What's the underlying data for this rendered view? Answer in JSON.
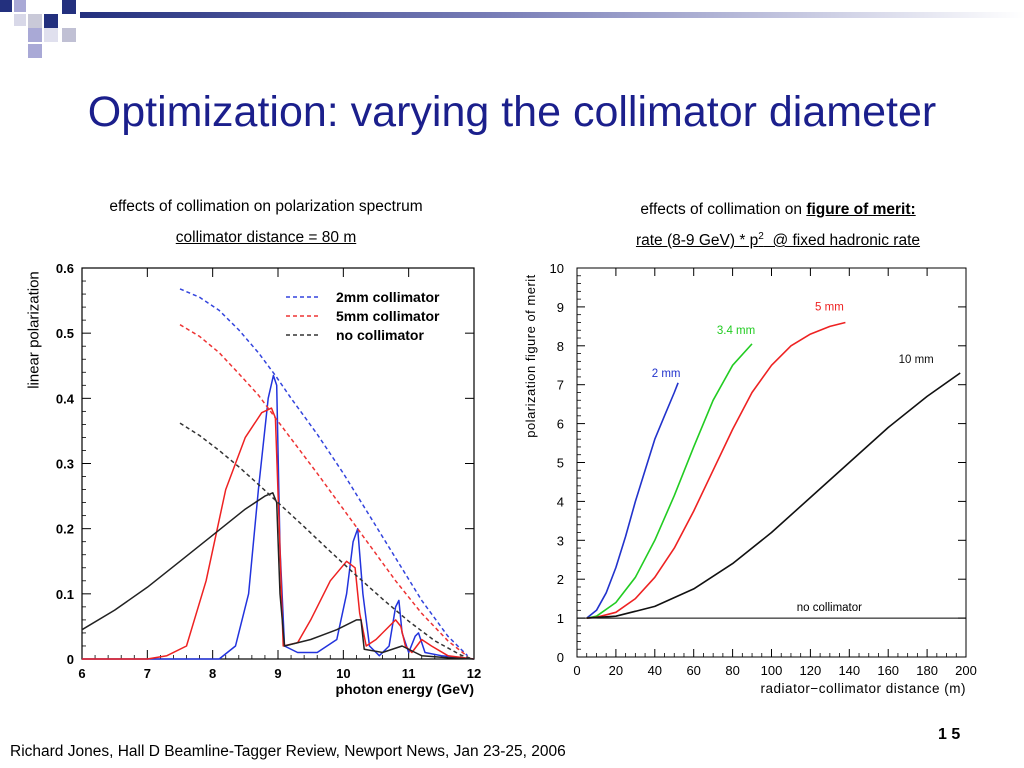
{
  "title": "Optimization: varying the collimator diameter",
  "left_caption": "effects of collimation on polarization spectrum",
  "left_subcaption": "collimator distance = 80 m",
  "right_caption_prefix": "effects of collimation on ",
  "right_caption_bold": "figure of merit:",
  "right_subcaption_a": "rate (8-9 GeV) * p",
  "right_subcaption_sup": "2",
  "right_subcaption_b": "  @ fixed hadronic rate",
  "footer": "Richard Jones, Hall D Beamline-Tagger Review, Newport News, Jan 23-25, 2006",
  "page_number": "1 5",
  "colors": {
    "title": "#1b1f8c",
    "decor_blue": "#23307e",
    "decor_light": "#a9a9d6",
    "decor_gray": "#b8b8c8"
  },
  "chart_data": [
    {
      "type": "line",
      "xlabel": "photon energy (GeV)",
      "ylabel": "linear polarization",
      "xlim": [
        6,
        12
      ],
      "ylim": [
        0,
        0.6
      ],
      "xticks": [
        "6",
        "7",
        "8",
        "9",
        "10",
        "11",
        "12"
      ],
      "yticks": [
        "0",
        "0.1",
        "0.2",
        "0.3",
        "0.4",
        "0.5",
        "0.6"
      ],
      "legend_position": "top-right",
      "series": [
        {
          "name": "2mm collimator",
          "color": "#3344dd",
          "style": "dashed",
          "x": [
            7.5,
            7.8,
            8.1,
            8.4,
            8.7,
            8.96,
            9.2,
            9.6,
            10.0,
            10.4,
            10.8,
            11.2,
            11.6,
            11.9
          ],
          "y": [
            0.568,
            0.555,
            0.535,
            0.505,
            0.47,
            0.435,
            0.4,
            0.345,
            0.285,
            0.22,
            0.155,
            0.09,
            0.035,
            0.005
          ]
        },
        {
          "name": "5mm collimator",
          "color": "#ee3333",
          "style": "dashed",
          "x": [
            7.5,
            7.8,
            8.1,
            8.4,
            8.7,
            8.96,
            9.2,
            9.6,
            10.0,
            10.4,
            10.8,
            11.2,
            11.6,
            11.9
          ],
          "y": [
            0.513,
            0.495,
            0.47,
            0.438,
            0.405,
            0.37,
            0.338,
            0.285,
            0.23,
            0.175,
            0.12,
            0.07,
            0.028,
            0.004
          ]
        },
        {
          "name": "no collimator",
          "color": "#333333",
          "style": "dashed",
          "x": [
            7.5,
            7.8,
            8.1,
            8.4,
            8.7,
            9.0,
            9.4,
            9.8,
            10.2,
            10.6,
            11.0,
            11.4,
            11.8,
            11.95
          ],
          "y": [
            0.362,
            0.343,
            0.32,
            0.295,
            0.268,
            0.24,
            0.203,
            0.165,
            0.128,
            0.092,
            0.058,
            0.028,
            0.006,
            0.001
          ]
        },
        {
          "name": "",
          "color": "#2233dd",
          "style": "solid",
          "x": [
            6.0,
            7.0,
            7.5,
            7.8,
            8.1,
            8.35,
            8.55,
            8.7,
            8.85,
            8.93,
            8.98,
            9.03,
            9.1,
            9.3,
            9.6,
            9.9,
            10.05,
            10.15,
            10.22,
            10.3,
            10.4,
            10.55,
            10.7,
            10.8,
            10.85,
            10.9,
            11.0,
            11.1,
            11.15,
            11.25,
            11.5,
            11.8,
            12.0
          ],
          "y": [
            0,
            0,
            0,
            0,
            0,
            0.02,
            0.1,
            0.26,
            0.4,
            0.435,
            0.42,
            0.17,
            0.02,
            0.01,
            0.01,
            0.03,
            0.1,
            0.18,
            0.2,
            0.1,
            0.02,
            0.005,
            0.02,
            0.08,
            0.09,
            0.04,
            0.01,
            0.035,
            0.04,
            0.01,
            0.005,
            0.002,
            0
          ]
        },
        {
          "name": "",
          "color": "#ee2222",
          "style": "solid",
          "x": [
            6.0,
            7.0,
            7.3,
            7.6,
            7.9,
            8.2,
            8.5,
            8.75,
            8.9,
            8.96,
            9.02,
            9.08,
            9.3,
            9.5,
            9.8,
            10.05,
            10.18,
            10.25,
            10.35,
            10.5,
            10.7,
            10.8,
            10.88,
            10.95,
            11.05,
            11.2,
            11.35,
            11.6,
            12.0
          ],
          "y": [
            0,
            0,
            0.005,
            0.02,
            0.12,
            0.26,
            0.34,
            0.378,
            0.385,
            0.37,
            0.2,
            0.02,
            0.025,
            0.06,
            0.12,
            0.15,
            0.14,
            0.07,
            0.02,
            0.03,
            0.05,
            0.06,
            0.05,
            0.02,
            0.01,
            0.03,
            0.02,
            0.005,
            0
          ]
        },
        {
          "name": "",
          "color": "#222222",
          "style": "solid",
          "x": [
            6.0,
            6.5,
            7.0,
            7.5,
            8.0,
            8.5,
            8.8,
            8.92,
            8.98,
            9.03,
            9.1,
            9.5,
            9.9,
            10.2,
            10.27,
            10.32,
            10.6,
            10.9,
            11.1,
            11.2,
            11.6,
            12.0
          ],
          "y": [
            0.045,
            0.075,
            0.11,
            0.15,
            0.19,
            0.23,
            0.25,
            0.255,
            0.24,
            0.1,
            0.02,
            0.03,
            0.045,
            0.06,
            0.06,
            0.015,
            0.01,
            0.02,
            0.01,
            0.005,
            0.002,
            0
          ]
        }
      ]
    },
    {
      "type": "line",
      "xlabel": "radiator−collimator distance (m)",
      "ylabel": "polarization figure of merit",
      "xlim": [
        0,
        200
      ],
      "ylim": [
        0,
        10
      ],
      "xticks": [
        "0",
        "20",
        "40",
        "60",
        "80",
        "100",
        "120",
        "140",
        "160",
        "180",
        "200"
      ],
      "yticks": [
        "0",
        "1",
        "2",
        "3",
        "4",
        "5",
        "6",
        "7",
        "8",
        "9",
        "10"
      ],
      "reference_line": {
        "label": "no collimator",
        "y": 1
      },
      "series": [
        {
          "name": "2 mm",
          "color": "#2233cc",
          "x": [
            5,
            10,
            15,
            20,
            25,
            30,
            35,
            40,
            45,
            50,
            52
          ],
          "y": [
            1.0,
            1.2,
            1.65,
            2.3,
            3.1,
            4.0,
            4.8,
            5.6,
            6.2,
            6.8,
            7.05
          ]
        },
        {
          "name": "3.4 mm",
          "color": "#22cc22",
          "x": [
            5,
            10,
            20,
            30,
            40,
            50,
            60,
            70,
            80,
            90
          ],
          "y": [
            1.0,
            1.05,
            1.4,
            2.05,
            3.0,
            4.15,
            5.4,
            6.6,
            7.5,
            8.05
          ]
        },
        {
          "name": "5 mm",
          "color": "#ee2222",
          "x": [
            5,
            10,
            20,
            30,
            40,
            50,
            60,
            70,
            80,
            90,
            100,
            110,
            120,
            130,
            138
          ],
          "y": [
            1.0,
            1.02,
            1.15,
            1.5,
            2.05,
            2.8,
            3.75,
            4.8,
            5.85,
            6.8,
            7.5,
            8.0,
            8.3,
            8.5,
            8.6
          ]
        },
        {
          "name": "10 mm",
          "color": "#111111",
          "x": [
            5,
            20,
            40,
            60,
            80,
            100,
            120,
            140,
            160,
            180,
            197
          ],
          "y": [
            1.0,
            1.05,
            1.3,
            1.75,
            2.4,
            3.2,
            4.1,
            5.0,
            5.9,
            6.7,
            7.3
          ]
        }
      ]
    }
  ]
}
